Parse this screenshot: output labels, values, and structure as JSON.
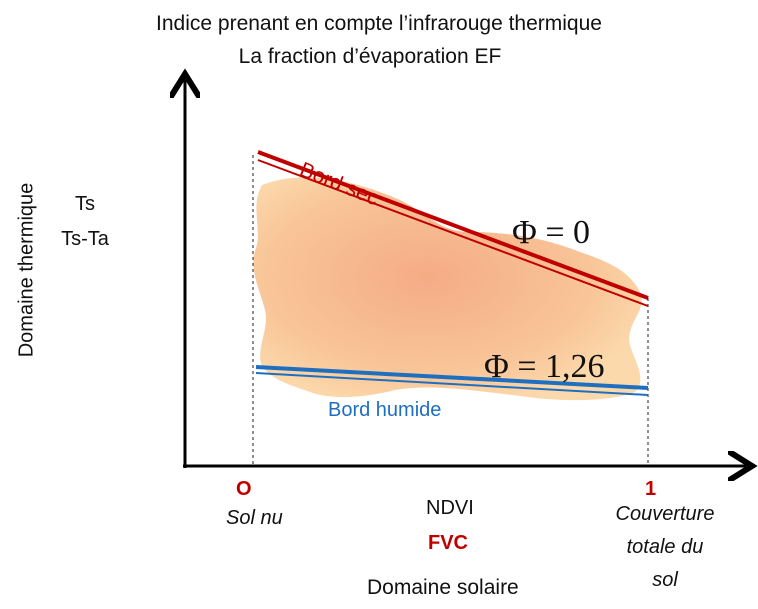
{
  "title_line1": "Indice prenant en compte l’infrarouge thermique",
  "title_line2": "La fraction d’évaporation EF",
  "y_axis": {
    "label": "Domaine thermique",
    "var1": "Ts",
    "var2": "Ts-Ta"
  },
  "x_axis": {
    "start_value": "O",
    "start_caption": "Sol nu",
    "var1": "NDVI",
    "var2": "FVC",
    "label": "Domaine solaire",
    "end_value": "1",
    "end_caption_lines": [
      "Couverture",
      "totale du",
      "sol"
    ]
  },
  "dry_edge": {
    "label": "Bord sec",
    "equation": "Φ = 0",
    "color": "#c00000"
  },
  "wet_edge": {
    "label": "Bord humide",
    "equation": "Φ = 1,26",
    "color": "#1f6fc1"
  },
  "colors": {
    "cloud_center": "#f4a77e",
    "cloud_edge": "#fbd4a4",
    "axis": "#000000"
  }
}
